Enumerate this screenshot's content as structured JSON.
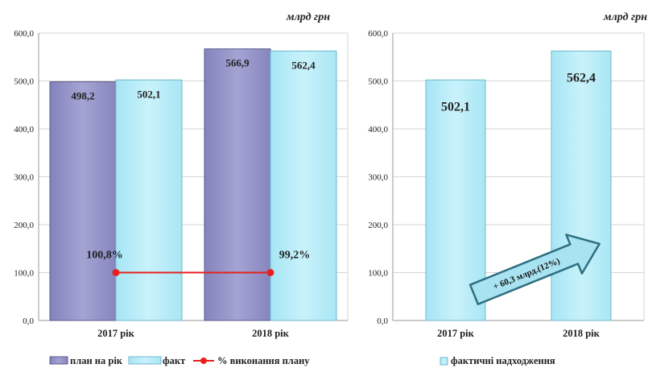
{
  "colors": {
    "plan": "#9191c6",
    "plan_stroke": "#5a5a8c",
    "fact": "#b9ecf7",
    "fact_stroke": "#6fb8cc",
    "pct_line": "#e8201c",
    "arrow_fill": "#a9e3f2",
    "arrow_stroke": "#2e6f80"
  },
  "chart_data": [
    {
      "type": "bar",
      "unit_label": "млрд грн",
      "categories": [
        "2017 рік",
        "2018 рік"
      ],
      "ylim": [
        0,
        600
      ],
      "yticks": [
        "0,0",
        "100,0",
        "200,0",
        "300,0",
        "400,0",
        "500,0",
        "600,0"
      ],
      "series": [
        {
          "name": "план на рік",
          "values": [
            498.2,
            566.9
          ],
          "labels": [
            "498,2",
            "566,9"
          ]
        },
        {
          "name": "факт",
          "values": [
            502.1,
            562.4
          ],
          "labels": [
            "502,1",
            "562,4"
          ]
        }
      ],
      "line_series": {
        "name": "% виконання плану",
        "values": [
          100.8,
          99.2
        ],
        "labels": [
          "100,8%",
          "99,2%"
        ]
      },
      "grid": true,
      "legend_position": "bottom"
    },
    {
      "type": "bar",
      "unit_label": "млрд грн",
      "categories": [
        "2017 рік",
        "2018 рік"
      ],
      "ylim": [
        0,
        600
      ],
      "yticks": [
        "0,0",
        "100,0",
        "200,0",
        "300,0",
        "400,0",
        "500,0",
        "600,0"
      ],
      "series": [
        {
          "name": "фактичні надходження",
          "values": [
            502.1,
            562.4
          ],
          "labels": [
            "502,1",
            "562,4"
          ]
        }
      ],
      "annotation": "+ 60,3 млрд.(12%)",
      "grid": true,
      "legend_position": "bottom"
    }
  ]
}
